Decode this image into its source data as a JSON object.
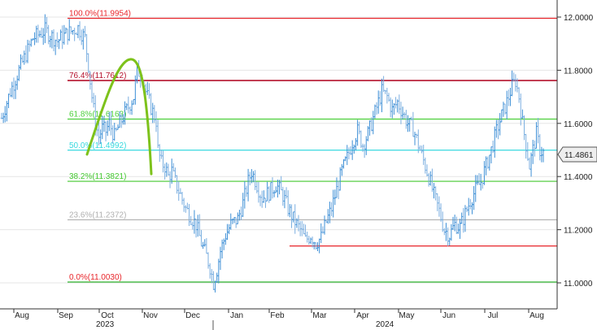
{
  "chart_data": {
    "type": "bar",
    "subtype": "ohlc",
    "ylim": [
      10.95,
      12.05
    ],
    "y_axis_position": "right",
    "y_ticks": [
      "12.0000",
      "11.8000",
      "11.6000",
      "11.4000",
      "11.2000",
      "11.0000"
    ],
    "x_ticks": [
      "Aug",
      "Sep",
      "Oct",
      "Nov",
      "Dec",
      "Jan",
      "Feb",
      "Mar",
      "Apr",
      "May",
      "Jun",
      "Jul",
      "Aug"
    ],
    "year_labels": [
      "2023",
      "2024"
    ],
    "last_price_label": "11.4861",
    "last_price": 11.4861,
    "fibonacci_levels": [
      {
        "label": "100.0%(11.9954)",
        "value": 11.9954,
        "color": "#e8262b"
      },
      {
        "label": "76.4%(11.7612)",
        "value": 11.7612,
        "color": "#b5122d"
      },
      {
        "label": "61.8%(11.6163)",
        "value": 11.6163,
        "color": "#4ccf3b"
      },
      {
        "label": "50.0%(11.4992)",
        "value": 11.4992,
        "color": "#36d9df"
      },
      {
        "label": "38.2%(11.3821)",
        "value": 11.3821,
        "color": "#43c82f"
      },
      {
        "label": "23.6%(11.2372)",
        "value": 11.2372,
        "color": "#b0b0b0"
      },
      {
        "label": "0.0%(11.0030)",
        "value": 11.003,
        "color": "#e8262b"
      }
    ],
    "support_line": {
      "value": 11.1388,
      "from": "Feb",
      "to": "Aug",
      "color": "#e8262b"
    },
    "zero_level_line_color": "#2fb52f",
    "price_path": [
      [
        0,
        11.62
      ],
      [
        5,
        11.72
      ],
      [
        10,
        11.8
      ],
      [
        18,
        11.92
      ],
      [
        25,
        11.95
      ],
      [
        32,
        11.91
      ],
      [
        38,
        11.94
      ],
      [
        44,
        11.96
      ],
      [
        48,
        11.92
      ],
      [
        50,
        11.82
      ],
      [
        52,
        11.7
      ],
      [
        54,
        11.6
      ],
      [
        56,
        11.55
      ],
      [
        58,
        11.58
      ],
      [
        60,
        11.57
      ],
      [
        62,
        11.6
      ],
      [
        65,
        11.55
      ],
      [
        68,
        11.6
      ],
      [
        72,
        11.65
      ],
      [
        76,
        11.7
      ],
      [
        78,
        11.8
      ],
      [
        81,
        11.78
      ],
      [
        83,
        11.72
      ],
      [
        86,
        11.66
      ],
      [
        89,
        11.61
      ],
      [
        90,
        11.5
      ],
      [
        92,
        11.45
      ],
      [
        94,
        11.44
      ],
      [
        96,
        11.4
      ],
      [
        98,
        11.42
      ],
      [
        100,
        11.38
      ],
      [
        103,
        11.33
      ],
      [
        106,
        11.28
      ],
      [
        109,
        11.25
      ],
      [
        112,
        11.22
      ],
      [
        115,
        11.15
      ],
      [
        118,
        11.1
      ],
      [
        120,
        11.06
      ],
      [
        122,
        11.0
      ],
      [
        124,
        11.05
      ],
      [
        126,
        11.12
      ],
      [
        129,
        11.18
      ],
      [
        132,
        11.22
      ],
      [
        136,
        11.24
      ],
      [
        139,
        11.3
      ],
      [
        142,
        11.38
      ],
      [
        144,
        11.42
      ],
      [
        147,
        11.37
      ],
      [
        150,
        11.32
      ],
      [
        154,
        11.34
      ],
      [
        158,
        11.37
      ],
      [
        162,
        11.33
      ],
      [
        165,
        11.28
      ],
      [
        168,
        11.24
      ],
      [
        172,
        11.2
      ],
      [
        175,
        11.16
      ],
      [
        178,
        11.18
      ],
      [
        181,
        11.15
      ],
      [
        184,
        11.17
      ],
      [
        187,
        11.23
      ],
      [
        190,
        11.28
      ],
      [
        193,
        11.35
      ],
      [
        196,
        11.42
      ],
      [
        199,
        11.47
      ],
      [
        202,
        11.53
      ],
      [
        205,
        11.57
      ],
      [
        208,
        11.52
      ],
      [
        211,
        11.56
      ],
      [
        214,
        11.62
      ],
      [
        217,
        11.68
      ],
      [
        219,
        11.72
      ],
      [
        222,
        11.7
      ],
      [
        225,
        11.65
      ],
      [
        228,
        11.68
      ],
      [
        231,
        11.64
      ],
      [
        234,
        11.6
      ],
      [
        237,
        11.58
      ],
      [
        240,
        11.52
      ],
      [
        243,
        11.46
      ],
      [
        246,
        11.4
      ],
      [
        249,
        11.33
      ],
      [
        252,
        11.27
      ],
      [
        255,
        11.2
      ],
      [
        258,
        11.18
      ],
      [
        261,
        11.22
      ],
      [
        264,
        11.21
      ],
      [
        267,
        11.26
      ],
      [
        270,
        11.31
      ],
      [
        273,
        11.35
      ],
      [
        276,
        11.38
      ],
      [
        279,
        11.44
      ],
      [
        282,
        11.5
      ],
      [
        285,
        11.57
      ],
      [
        288,
        11.63
      ],
      [
        291,
        11.68
      ],
      [
        294,
        11.74
      ],
      [
        296,
        11.76
      ],
      [
        298,
        11.7
      ],
      [
        300,
        11.6
      ],
      [
        302,
        11.52
      ],
      [
        304,
        11.44
      ],
      [
        306,
        11.5
      ],
      [
        308,
        11.56
      ],
      [
        310,
        11.5
      ],
      [
        312,
        11.49
      ]
    ]
  }
}
